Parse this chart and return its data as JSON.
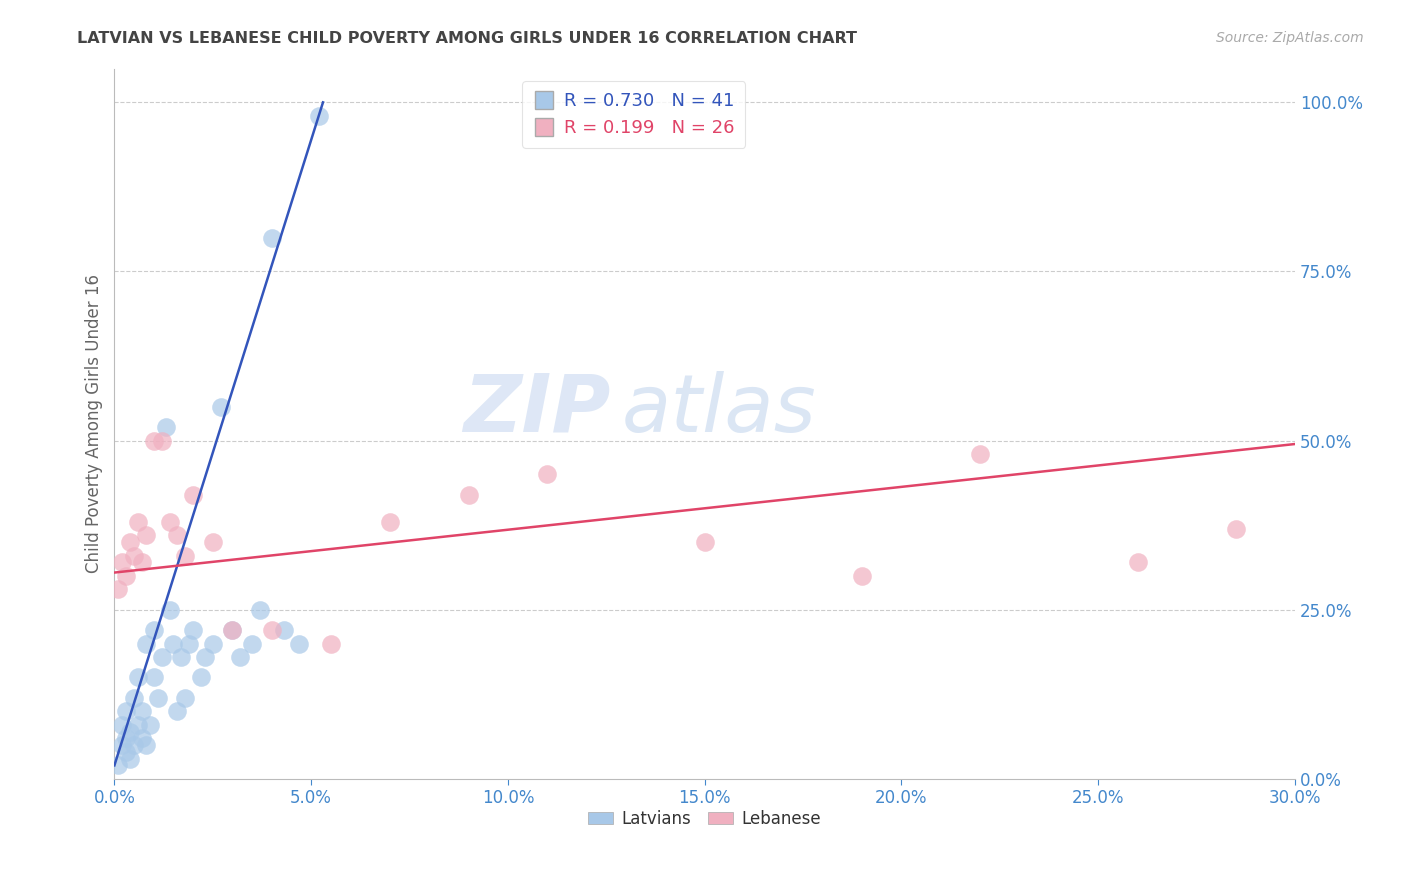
{
  "title": "LATVIAN VS LEBANESE CHILD POVERTY AMONG GIRLS UNDER 16 CORRELATION CHART",
  "source": "Source: ZipAtlas.com",
  "ylabel": "Child Poverty Among Girls Under 16",
  "xlim": [
    0.0,
    0.3
  ],
  "ylim": [
    0.0,
    1.05
  ],
  "latvian_color": "#a8c8e8",
  "lebanese_color": "#f0b0c0",
  "latvian_line_color": "#3355bb",
  "lebanese_line_color": "#e04468",
  "latvian_R": 0.73,
  "latvian_N": 41,
  "lebanese_R": 0.199,
  "lebanese_N": 26,
  "watermark_zip": "ZIP",
  "watermark_atlas": "atlas",
  "background_color": "#ffffff",
  "grid_color": "#cccccc",
  "axis_label_color": "#4488cc",
  "title_color": "#444444",
  "latvians_x": [
    0.001,
    0.002,
    0.002,
    0.003,
    0.003,
    0.003,
    0.004,
    0.004,
    0.005,
    0.005,
    0.006,
    0.006,
    0.007,
    0.007,
    0.008,
    0.008,
    0.009,
    0.01,
    0.01,
    0.011,
    0.012,
    0.013,
    0.014,
    0.015,
    0.016,
    0.017,
    0.018,
    0.019,
    0.02,
    0.022,
    0.023,
    0.025,
    0.027,
    0.03,
    0.032,
    0.035,
    0.037,
    0.04,
    0.043,
    0.047,
    0.052
  ],
  "latvians_y": [
    0.02,
    0.05,
    0.08,
    0.04,
    0.06,
    0.1,
    0.03,
    0.07,
    0.05,
    0.12,
    0.08,
    0.15,
    0.06,
    0.1,
    0.05,
    0.2,
    0.08,
    0.22,
    0.15,
    0.12,
    0.18,
    0.52,
    0.25,
    0.2,
    0.1,
    0.18,
    0.12,
    0.2,
    0.22,
    0.15,
    0.18,
    0.2,
    0.55,
    0.22,
    0.18,
    0.2,
    0.25,
    0.8,
    0.22,
    0.2,
    0.98
  ],
  "lebanese_x": [
    0.001,
    0.002,
    0.003,
    0.004,
    0.005,
    0.006,
    0.007,
    0.008,
    0.01,
    0.012,
    0.014,
    0.016,
    0.018,
    0.02,
    0.025,
    0.03,
    0.04,
    0.055,
    0.07,
    0.09,
    0.11,
    0.15,
    0.19,
    0.22,
    0.26,
    0.285
  ],
  "lebanese_y": [
    0.28,
    0.32,
    0.3,
    0.35,
    0.33,
    0.38,
    0.32,
    0.36,
    0.5,
    0.5,
    0.38,
    0.36,
    0.33,
    0.42,
    0.35,
    0.22,
    0.22,
    0.2,
    0.38,
    0.42,
    0.45,
    0.35,
    0.3,
    0.48,
    0.32,
    0.37
  ],
  "latvian_trend_x": [
    0.0,
    0.053
  ],
  "latvian_trend_y": [
    0.02,
    1.0
  ],
  "lebanese_trend_x": [
    0.0,
    0.3
  ],
  "lebanese_trend_y": [
    0.305,
    0.495
  ],
  "xticks": [
    0.0,
    0.05,
    0.1,
    0.15,
    0.2,
    0.25,
    0.3
  ],
  "yticks_right": [
    0.0,
    0.25,
    0.5,
    0.75,
    1.0
  ]
}
